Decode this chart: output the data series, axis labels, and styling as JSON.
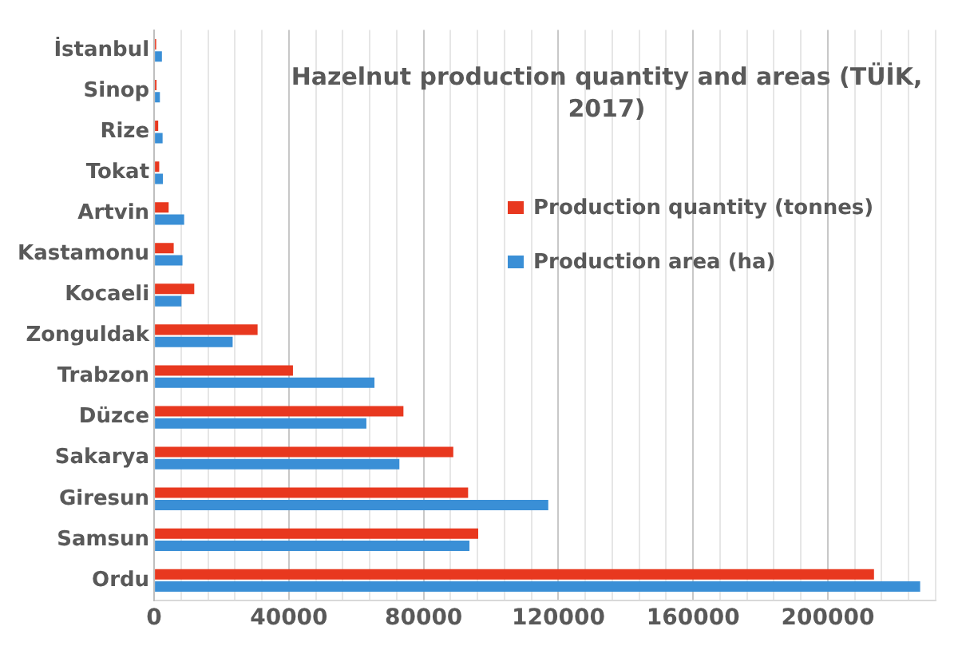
{
  "chart_data": {
    "type": "bar",
    "orientation": "horizontal",
    "title": "Hazelnut production quantity and areas (TÜİK, 2017)",
    "categories": [
      "İstanbul",
      "Sinop",
      "Rize",
      "Tokat",
      "Artvin",
      "Kastamonu",
      "Kocaeli",
      "Zonguldak",
      "Trabzon",
      "Düzce",
      "Sakarya",
      "Giresun",
      "Samsun",
      "Ordu"
    ],
    "series": [
      {
        "name": "Production quantity (tonnes)",
        "color": "#e8381f",
        "values": [
          600,
          700,
          1200,
          1500,
          4300,
          5800,
          11900,
          30700,
          41200,
          74000,
          88800,
          93200,
          96200,
          213700
        ]
      },
      {
        "name": "Production area (ha)",
        "color": "#3a8fd6",
        "values": [
          2300,
          1700,
          2500,
          2600,
          8900,
          8400,
          8100,
          23300,
          65400,
          63000,
          72800,
          117000,
          93600,
          227400
        ]
      }
    ],
    "xlim": [
      0,
      232000
    ],
    "xticks": [
      0,
      {
        "value": 8000,
        "label": null
      },
      {
        "value": 16000,
        "label": null
      },
      {
        "value": 24000,
        "label": null
      },
      {
        "value": 32000,
        "label": null
      },
      40000,
      {
        "value": 48000,
        "label": null
      },
      {
        "value": 56000,
        "label": null
      },
      {
        "value": 64000,
        "label": null
      },
      {
        "value": 72000,
        "label": null
      },
      80000,
      {
        "value": 88000,
        "label": null
      },
      {
        "value": 96000,
        "label": null
      },
      {
        "value": 104000,
        "label": null
      },
      {
        "value": 112000,
        "label": null
      },
      120000,
      {
        "value": 128000,
        "label": null
      },
      {
        "value": 136000,
        "label": null
      },
      {
        "value": 144000,
        "label": null
      },
      {
        "value": 152000,
        "label": null
      },
      160000,
      {
        "value": 168000,
        "label": null
      },
      {
        "value": 176000,
        "label": null
      },
      {
        "value": 184000,
        "label": null
      },
      {
        "value": 192000,
        "label": null
      },
      200000,
      {
        "value": 208000,
        "label": null
      },
      {
        "value": 216000,
        "label": null
      },
      {
        "value": 224000,
        "label": null
      },
      {
        "value": 232000,
        "label": null
      }
    ],
    "grid": "x",
    "legend": "top right"
  }
}
